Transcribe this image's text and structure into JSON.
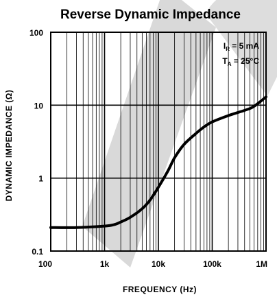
{
  "chart_data": {
    "type": "line",
    "title": "Reverse Dynamic Impedance",
    "xlabel": "FREQUENCY (Hz)",
    "ylabel": "DYNAMIC IMPEDANCE (Ω)",
    "x_scale": "log",
    "y_scale": "log",
    "xlim": [
      100,
      1000000
    ],
    "ylim": [
      0.1,
      100
    ],
    "x_ticks": [
      "100",
      "1k",
      "10k",
      "100k",
      "1M"
    ],
    "y_ticks": [
      "0.1",
      "1",
      "10",
      "100"
    ],
    "grid": true,
    "annotations": [
      {
        "main": "I",
        "sub": "R",
        "rest": " = 5 mA"
      },
      {
        "main": "T",
        "sub": "A",
        "rest": " = 25°C"
      }
    ],
    "series": [
      {
        "x": [
          100,
          300,
          1000,
          1500,
          2000,
          3000,
          5000,
          7000,
          10000,
          15000,
          20000,
          30000,
          50000,
          70000,
          100000,
          200000,
          500000,
          700000,
          1000000
        ],
        "y": [
          0.21,
          0.21,
          0.22,
          0.23,
          0.25,
          0.29,
          0.38,
          0.5,
          0.75,
          1.25,
          1.9,
          2.9,
          4.1,
          5.0,
          5.9,
          7.2,
          9.0,
          10.5,
          13.0
        ]
      }
    ],
    "colors": {
      "line": "#000000",
      "grid": "#000000",
      "watermark": "#d9d9d9"
    }
  }
}
